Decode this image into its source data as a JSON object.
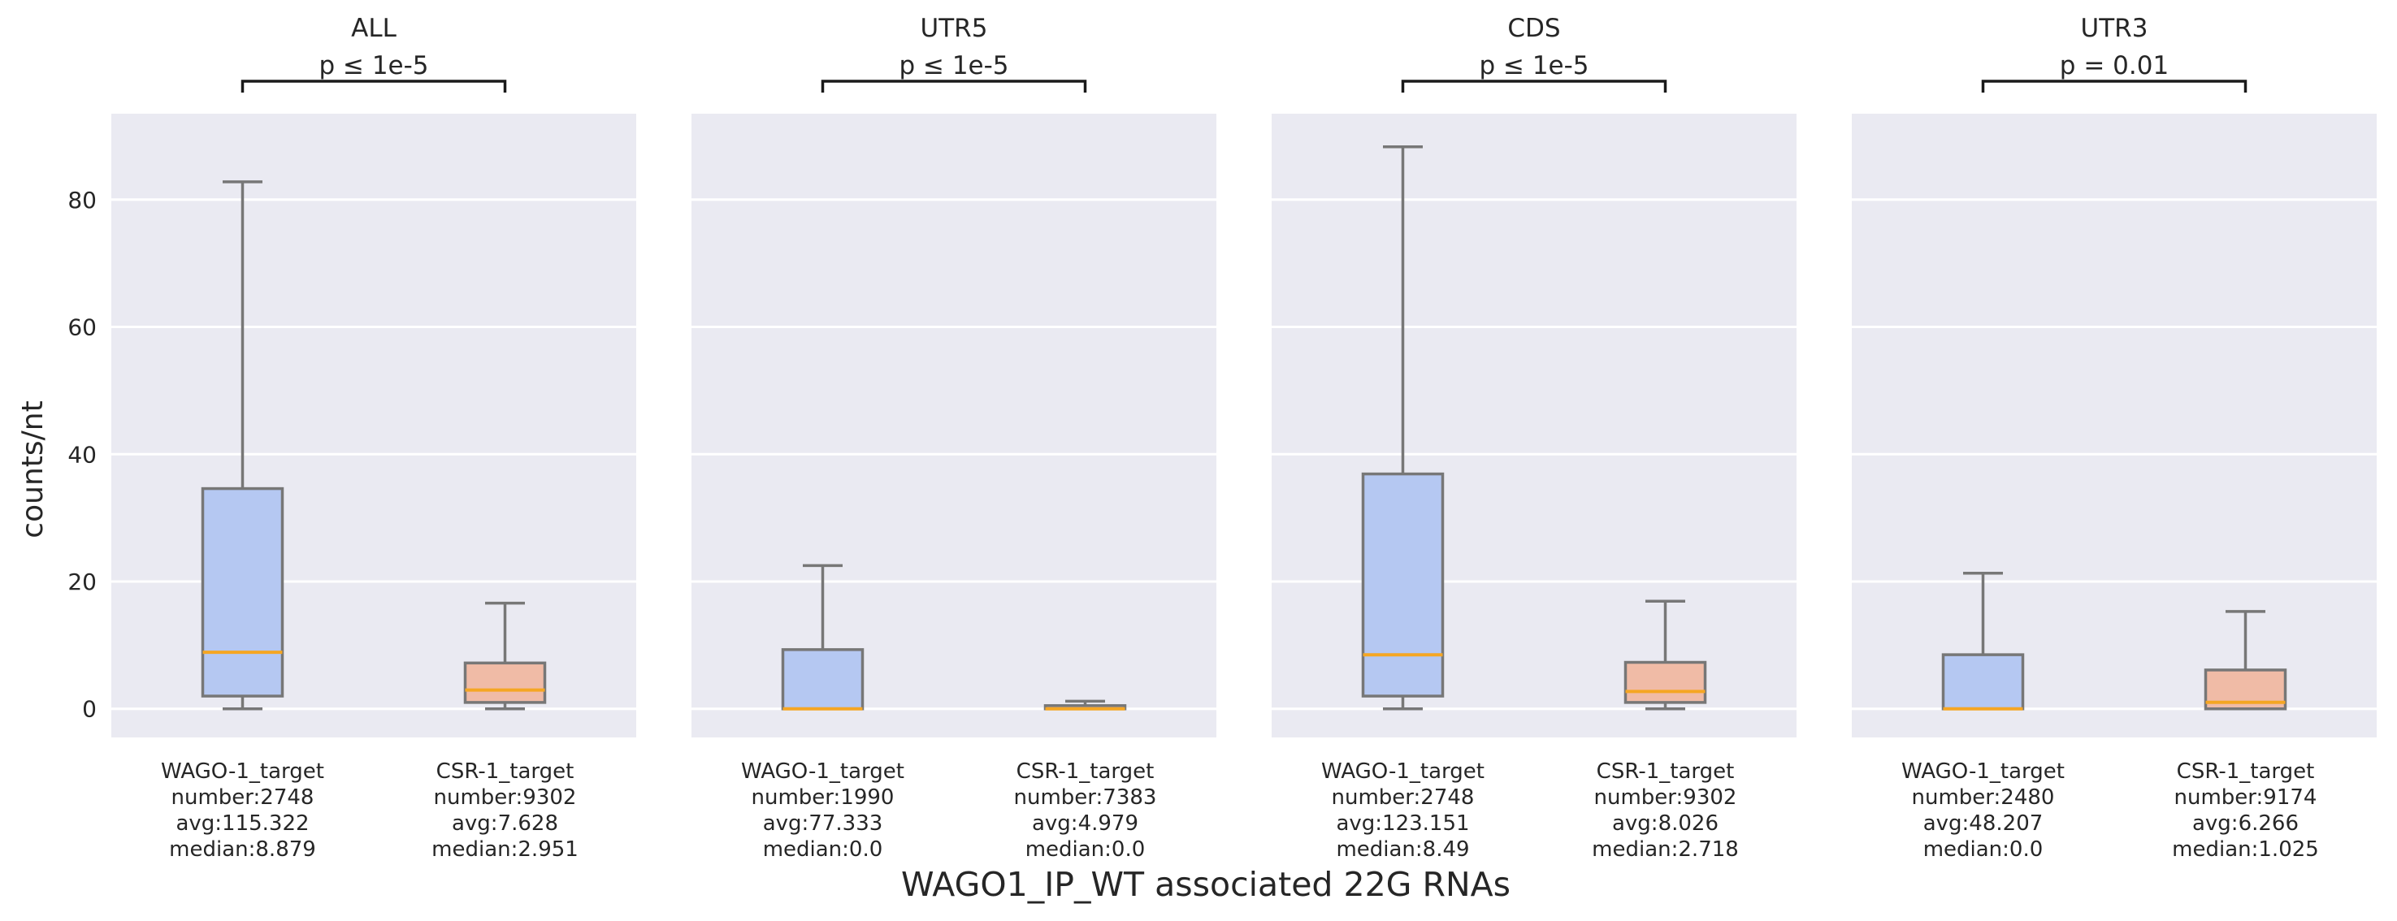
{
  "chart_data": {
    "type": "box",
    "xlabel": "WAGO1_IP_WT associated 22G RNAs",
    "ylabel": "counts/nt",
    "ylim": [
      -4.5,
      93.5
    ],
    "yticks": [
      "0",
      "20",
      "40",
      "60",
      "80"
    ],
    "grid": true,
    "colors": {
      "WAGO-1_target": "#b5c8f2",
      "CSR-1_target": "#f0bba6",
      "median": "#f5a623",
      "box_edge": "#777777",
      "background": "#eaeaf2",
      "bracket": "#1a1a1a"
    },
    "panels": [
      {
        "title": "ALL",
        "pvalue": "p ≤ 1e-5",
        "boxes": [
          {
            "label": [
              "WAGO-1_target",
              "number:2748",
              "avg:115.322",
              "median:8.879"
            ],
            "whisker_low": 0,
            "q1": 2.0,
            "median": 8.879,
            "q3": 34.6,
            "whisker_high": 82.8
          },
          {
            "label": [
              "CSR-1_target",
              "number:9302",
              "avg:7.628",
              "median:2.951"
            ],
            "whisker_low": 0,
            "q1": 1.0,
            "median": 2.951,
            "q3": 7.2,
            "whisker_high": 16.6
          }
        ]
      },
      {
        "title": "UTR5",
        "pvalue": "p ≤ 1e-5",
        "boxes": [
          {
            "label": [
              "WAGO-1_target",
              "number:1990",
              "avg:77.333",
              "median:0.0"
            ],
            "whisker_low": 0,
            "q1": 0,
            "median": 0.0,
            "q3": 9.3,
            "whisker_high": 22.5
          },
          {
            "label": [
              "CSR-1_target",
              "number:7383",
              "avg:4.979",
              "median:0.0"
            ],
            "whisker_low": 0,
            "q1": 0,
            "median": 0.0,
            "q3": 0.5,
            "whisker_high": 1.2
          }
        ]
      },
      {
        "title": "CDS",
        "pvalue": "p ≤ 1e-5",
        "boxes": [
          {
            "label": [
              "WAGO-1_target",
              "number:2748",
              "avg:123.151",
              "median:8.49"
            ],
            "whisker_low": 0,
            "q1": 2.0,
            "median": 8.49,
            "q3": 36.9,
            "whisker_high": 88.3
          },
          {
            "label": [
              "CSR-1_target",
              "number:9302",
              "avg:8.026",
              "median:2.718"
            ],
            "whisker_low": 0,
            "q1": 1.0,
            "median": 2.718,
            "q3": 7.3,
            "whisker_high": 16.9
          }
        ]
      },
      {
        "title": "UTR3",
        "pvalue": "p = 0.01",
        "boxes": [
          {
            "label": [
              "WAGO-1_target",
              "number:2480",
              "avg:48.207",
              "median:0.0"
            ],
            "whisker_low": 0,
            "q1": 0,
            "median": 0.0,
            "q3": 8.5,
            "whisker_high": 21.3
          },
          {
            "label": [
              "CSR-1_target",
              "number:9174",
              "avg:6.266",
              "median:1.025"
            ],
            "whisker_low": 0,
            "q1": 0,
            "median": 1.025,
            "q3": 6.1,
            "whisker_high": 15.3
          }
        ]
      }
    ]
  }
}
